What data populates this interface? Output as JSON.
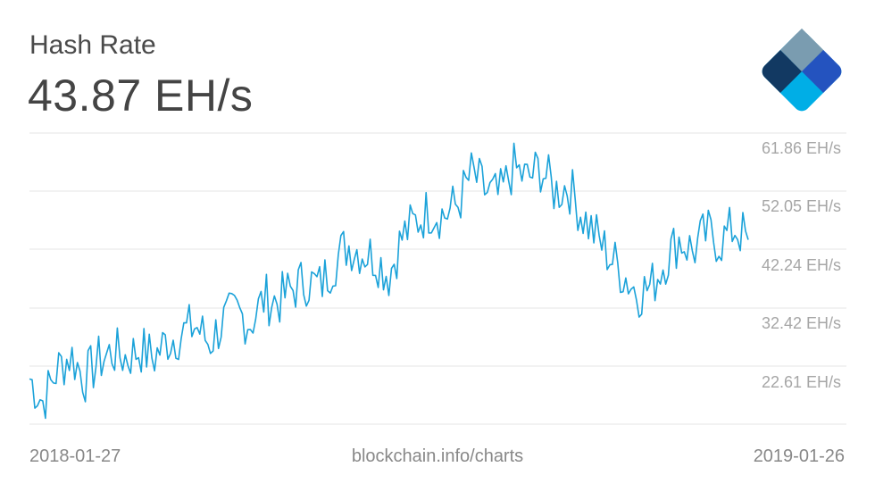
{
  "header": {
    "title": "Hash Rate",
    "current_value": "43.87 EH/s"
  },
  "logo": {
    "name": "blockchain-logo",
    "colors": [
      "#7a9cb0",
      "#123962",
      "#2453bf",
      "#00aee6",
      "#a9d3e5"
    ]
  },
  "footer": {
    "start_date": "2018-01-27",
    "source": "blockchain.info/charts",
    "end_date": "2019-01-26"
  },
  "colors": {
    "line": "#1ba2d9",
    "grid": "#e6e6e6",
    "axis_text": "#a6a6a6"
  },
  "chart_data": {
    "type": "line",
    "title": "Hash Rate",
    "xlabel": "",
    "ylabel": "EH/s",
    "x_range": [
      "2018-01-27",
      "2019-01-26"
    ],
    "y_ticks": [
      "61.86 EH/s",
      "52.05 EH/s",
      "42.24 EH/s",
      "32.42 EH/s",
      "22.61 EH/s"
    ],
    "y_tick_values": [
      61.86,
      52.05,
      42.24,
      32.42,
      22.61
    ],
    "ylim": [
      12.8,
      61.86
    ],
    "grid": true,
    "legend": "none",
    "x": [
      "2018-01-27",
      "2018-02-03",
      "2018-02-10",
      "2018-02-17",
      "2018-02-24",
      "2018-03-03",
      "2018-03-10",
      "2018-03-17",
      "2018-03-24",
      "2018-03-31",
      "2018-04-07",
      "2018-04-14",
      "2018-04-21",
      "2018-04-28",
      "2018-05-05",
      "2018-05-12",
      "2018-05-19",
      "2018-05-26",
      "2018-06-02",
      "2018-06-09",
      "2018-06-16",
      "2018-06-23",
      "2018-06-30",
      "2018-07-07",
      "2018-07-14",
      "2018-07-21",
      "2018-07-28",
      "2018-08-04",
      "2018-08-11",
      "2018-08-18",
      "2018-08-25",
      "2018-09-01",
      "2018-09-08",
      "2018-09-15",
      "2018-09-22",
      "2018-09-29",
      "2018-10-06",
      "2018-10-13",
      "2018-10-20",
      "2018-10-27",
      "2018-11-03",
      "2018-11-10",
      "2018-11-17",
      "2018-11-24",
      "2018-12-01",
      "2018-12-08",
      "2018-12-15",
      "2018-12-22",
      "2018-12-29",
      "2019-01-05",
      "2019-01-12",
      "2019-01-19",
      "2019-01-26"
    ],
    "values": [
      20.5,
      16.5,
      22.0,
      24.5,
      20.5,
      23.5,
      25.0,
      24.0,
      25.5,
      24.0,
      27.0,
      28.0,
      29.5,
      26.5,
      30.0,
      31.5,
      30.0,
      34.0,
      33.5,
      35.5,
      37.0,
      36.0,
      40.0,
      43.0,
      42.0,
      41.0,
      38.0,
      44.5,
      47.0,
      49.0,
      48.0,
      50.0,
      55.0,
      52.0,
      51.0,
      56.0,
      54.0,
      56.0,
      52.0,
      53.0,
      48.0,
      44.5,
      41.0,
      38.0,
      35.0,
      36.0,
      40.5,
      44.0,
      42.0,
      45.0,
      43.5,
      46.0,
      43.87
    ]
  }
}
